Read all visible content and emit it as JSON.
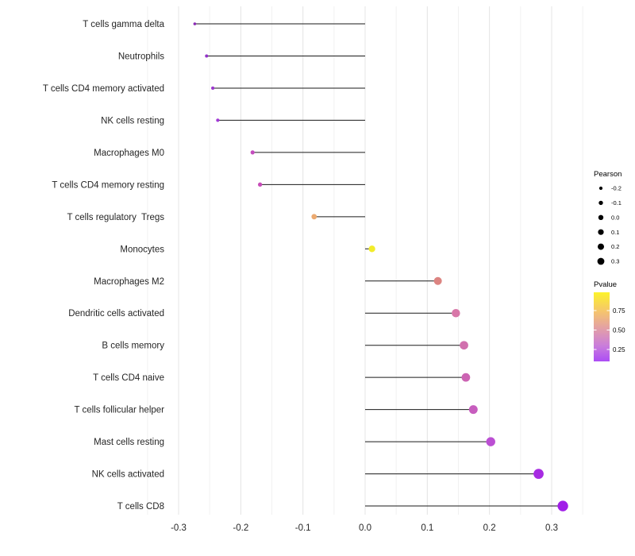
{
  "chart_data": {
    "type": "scatter",
    "variant": "lollipop",
    "title": "",
    "xlabel": "",
    "ylabel": "",
    "grid": true,
    "legend_position": "right",
    "xlim": [
      -0.35,
      0.35
    ],
    "xticks": [
      -0.3,
      -0.2,
      -0.1,
      0.0,
      0.1,
      0.2,
      0.3
    ],
    "xtick_labels": [
      "-0.3",
      "-0.2",
      "-0.1",
      "0.0",
      "0.1",
      "0.2",
      "0.3"
    ],
    "categories": [
      "T cells gamma delta",
      "Neutrophils",
      "T cells CD4 memory activated",
      "NK cells resting",
      "Macrophages M0",
      "T cells CD4 memory resting",
      "T cells regulatory  Tregs",
      "Monocytes",
      "Macrophages M2",
      "Dendritic cells activated",
      "B cells memory",
      "T cells CD4 naive",
      "T cells follicular helper",
      "Mast cells resting",
      "NK cells activated",
      "T cells CD8"
    ],
    "pearson_values": [
      -0.274,
      -0.255,
      -0.245,
      -0.237,
      -0.181,
      -0.169,
      -0.082,
      0.011,
      0.117,
      0.146,
      0.159,
      0.162,
      0.174,
      0.202,
      0.279,
      0.318
    ],
    "point_colors": [
      "#8A2BB5",
      "#9232C8",
      "#9B38CD",
      "#A23AD6",
      "#C44CBE",
      "#C74DB9",
      "#ECAA70",
      "#F2EC2A",
      "#DC8481",
      "#D877A8",
      "#D170AE",
      "#CC64B3",
      "#C75DBE",
      "#BB4FD3",
      "#A72BE2",
      "#A11FE8"
    ],
    "stem_color": "#1a1a1a",
    "legend_size": {
      "title": "Pearson",
      "values": [
        -0.2,
        -0.1,
        0.0,
        0.1,
        0.2,
        0.3
      ],
      "labels": [
        "-0.2",
        "-0.1",
        "0.0",
        "0.1",
        "0.2",
        "0.3"
      ],
      "dot_color": "#000000"
    },
    "legend_color": {
      "title": "Pvalue",
      "tick_labels": [
        "0.75",
        "0.50",
        "0.25"
      ],
      "gradient_top_to_bottom": [
        "#FCF32B",
        "#F5C46E",
        "#E3A0A6",
        "#C97CDC",
        "#AC4DF5"
      ]
    }
  }
}
